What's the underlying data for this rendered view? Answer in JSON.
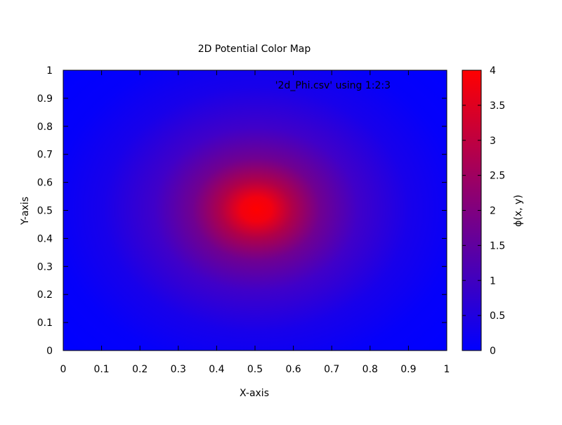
{
  "chart_data": {
    "type": "heatmap",
    "title": "2D Potential Color Map",
    "xlabel": "X-axis",
    "ylabel": "Y-axis",
    "xlim": [
      0,
      1
    ],
    "ylim": [
      0,
      1
    ],
    "xticks": [
      "0",
      "0.1",
      "0.2",
      "0.3",
      "0.4",
      "0.5",
      "0.6",
      "0.7",
      "0.8",
      "0.9",
      "1"
    ],
    "yticks": [
      "0",
      "0.1",
      "0.2",
      "0.3",
      "0.4",
      "0.5",
      "0.6",
      "0.7",
      "0.8",
      "0.9",
      "1"
    ],
    "legend": "'2d_Phi.csv' using 1:2:3",
    "colorbar": {
      "label": "ϕ(x, y)",
      "range": [
        0,
        4
      ],
      "ticks": [
        "0",
        "0.5",
        "1",
        "1.5",
        "2",
        "2.5",
        "3",
        "3.5",
        "4"
      ],
      "color_low": "#0000ff",
      "color_high": "#ff0000"
    },
    "field": {
      "peak_value": 4,
      "peak_x": 0.5,
      "peak_y": 0.5
    },
    "grid": false
  }
}
